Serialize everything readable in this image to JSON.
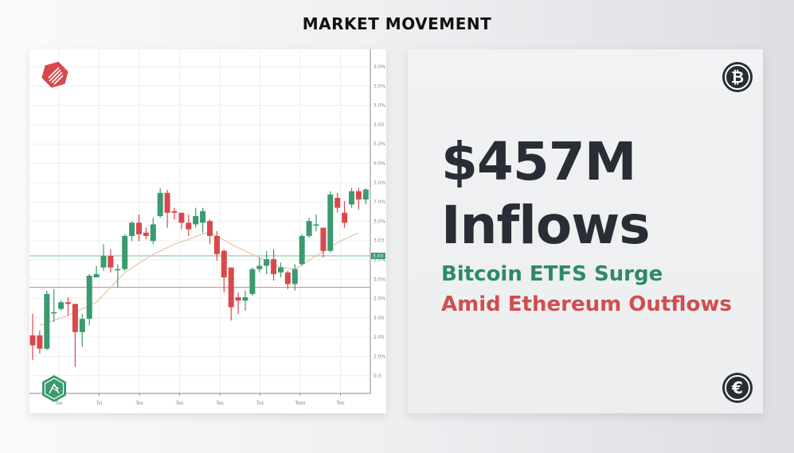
{
  "header": {
    "title": "MARKET MOVEMENT"
  },
  "info_card": {
    "headline_line1": "$457M",
    "headline_line2": "Inflows",
    "subline_green": "Bitcoin ETFS Surge",
    "subline_red": "Amid Ethereum Outflows",
    "top_icon": {
      "name": "bitcoin-icon",
      "glyph": "₿"
    },
    "bottom_icon": {
      "name": "euro-icon",
      "glyph": "€"
    }
  },
  "colors": {
    "up": "#3a9a70",
    "down": "#d9484b",
    "ma_line": "#e6c4a4",
    "green_hline": "#9fd0bb",
    "red_hline": "#e88a8a",
    "grid": "#eeeeee",
    "headline": "#2a2d36",
    "green_text": "#2e8a64",
    "red_text": "#d04e50"
  },
  "chart_data": {
    "type": "candlestick",
    "title": "",
    "xlabel": "",
    "ylabel": "",
    "x_tick_labels": [
      "Tse",
      "Tsi",
      "Tes",
      "Tes",
      "Tes",
      "Tos",
      "Toos",
      "Too"
    ],
    "y_tick_labels": [
      "3.0%",
      "3.0%",
      "3.0%",
      "3.00",
      "5.0%",
      "9.0%",
      "3.0%",
      "7.0%",
      "3.0%",
      "3.03",
      "3.0%",
      "3.0%",
      "2.0%",
      "3.00",
      "2.00",
      "2.0%",
      "0.0"
    ],
    "y_marker_label": "3.03",
    "horizontal_lines": [
      {
        "name": "green-level",
        "value": 41.5
      },
      {
        "name": "red-level",
        "value": 32
      }
    ],
    "grid": true,
    "candles": [
      {
        "o": 17.5,
        "c": 14.5,
        "h": 24,
        "l": 10
      },
      {
        "o": 17.5,
        "c": 13.5,
        "h": 19,
        "l": 12
      },
      {
        "o": 13.5,
        "c": 30,
        "h": 31,
        "l": 13
      },
      {
        "o": 24.5,
        "c": 24.5,
        "h": 31.5,
        "l": 21.5
      },
      {
        "o": 25.5,
        "c": 27.5,
        "h": 28,
        "l": 25
      },
      {
        "o": 27.5,
        "c": 27,
        "h": 29,
        "l": 23.5
      },
      {
        "o": 27,
        "c": 18.5,
        "h": 27,
        "l": 8
      },
      {
        "o": 18.5,
        "c": 22.5,
        "h": 24,
        "l": 14
      },
      {
        "o": 22.5,
        "c": 35.5,
        "h": 36,
        "l": 20.5
      },
      {
        "o": 35,
        "c": 36,
        "h": 38.5,
        "l": 35
      },
      {
        "o": 38,
        "c": 41.5,
        "h": 45,
        "l": 37
      },
      {
        "o": 41.5,
        "c": 38,
        "h": 43.5,
        "l": 36.5
      },
      {
        "o": 37.5,
        "c": 37.5,
        "h": 39,
        "l": 32
      },
      {
        "o": 37.5,
        "c": 47.5,
        "h": 48,
        "l": 37
      },
      {
        "o": 47.5,
        "c": 51.5,
        "h": 52,
        "l": 46
      },
      {
        "o": 51.5,
        "c": 48,
        "h": 54,
        "l": 46
      },
      {
        "o": 48.5,
        "c": 47.5,
        "h": 50,
        "l": 46.5
      },
      {
        "o": 46,
        "c": 51,
        "h": 53,
        "l": 45
      },
      {
        "o": 53.5,
        "c": 60.5,
        "h": 62,
        "l": 53
      },
      {
        "o": 60.5,
        "c": 54.5,
        "h": 61.5,
        "l": 50
      },
      {
        "o": 55,
        "c": 54.5,
        "h": 56,
        "l": 52.5
      },
      {
        "o": 54.5,
        "c": 51.5,
        "h": 53,
        "l": 49.5
      },
      {
        "o": 51.5,
        "c": 49.5,
        "h": 54,
        "l": 47.5
      },
      {
        "o": 51,
        "c": 53.5,
        "h": 56,
        "l": 50
      },
      {
        "o": 51.5,
        "c": 55,
        "h": 56,
        "l": 48.5
      },
      {
        "o": 52,
        "c": 47.5,
        "h": 52.5,
        "l": 45
      },
      {
        "o": 47.5,
        "c": 42,
        "h": 49,
        "l": 40
      },
      {
        "o": 43,
        "c": 35,
        "h": 43.5,
        "l": 30.5
      },
      {
        "o": 38,
        "c": 26,
        "h": 38,
        "l": 22
      },
      {
        "o": 29,
        "c": 28,
        "h": 30.5,
        "l": 24
      },
      {
        "o": 28,
        "c": 29,
        "h": 31,
        "l": 25
      },
      {
        "o": 30,
        "c": 37.5,
        "h": 38,
        "l": 29.5
      },
      {
        "o": 37.5,
        "c": 38.5,
        "h": 41,
        "l": 36.5
      },
      {
        "o": 38.5,
        "c": 40.5,
        "h": 43,
        "l": 36
      },
      {
        "o": 40.5,
        "c": 36,
        "h": 43.5,
        "l": 34
      },
      {
        "o": 36.5,
        "c": 38,
        "h": 39.5,
        "l": 35
      },
      {
        "o": 36.5,
        "c": 33,
        "h": 37,
        "l": 31.5
      },
      {
        "o": 33,
        "c": 37.5,
        "h": 39,
        "l": 31
      },
      {
        "o": 39,
        "c": 47.5,
        "h": 48,
        "l": 38.5
      },
      {
        "o": 47.5,
        "c": 52,
        "h": 53,
        "l": 47
      },
      {
        "o": 51,
        "c": 51,
        "h": 54,
        "l": 49
      },
      {
        "o": 50,
        "c": 43,
        "h": 50,
        "l": 41
      },
      {
        "o": 43,
        "c": 60,
        "h": 61,
        "l": 42.5
      },
      {
        "o": 59,
        "c": 56,
        "h": 60.5,
        "l": 54.5
      },
      {
        "o": 54.5,
        "c": 51.5,
        "h": 58,
        "l": 50
      },
      {
        "o": 57,
        "c": 61,
        "h": 62,
        "l": 56
      },
      {
        "o": 61,
        "c": 58.5,
        "h": 62,
        "l": 55.5
      },
      {
        "o": 58.5,
        "c": 61.5,
        "h": 62,
        "l": 57
      }
    ],
    "moving_average": [
      {
        "i": 1,
        "v": 20.5
      },
      {
        "i": 5,
        "v": 23.5
      },
      {
        "i": 9,
        "v": 27.5
      },
      {
        "i": 13,
        "v": 36.5
      },
      {
        "i": 17,
        "v": 42
      },
      {
        "i": 20,
        "v": 45
      },
      {
        "i": 22,
        "v": 46.5
      },
      {
        "i": 24.5,
        "v": 48.5
      },
      {
        "i": 26,
        "v": 47.5
      },
      {
        "i": 28,
        "v": 45
      },
      {
        "i": 31,
        "v": 42
      },
      {
        "i": 33,
        "v": 40
      },
      {
        "i": 35,
        "v": 38
      },
      {
        "i": 37,
        "v": 37.5
      },
      {
        "i": 40,
        "v": 41.5
      },
      {
        "i": 43,
        "v": 45.5
      },
      {
        "i": 46,
        "v": 48.5
      }
    ],
    "ylim": [
      0,
      100
    ]
  }
}
